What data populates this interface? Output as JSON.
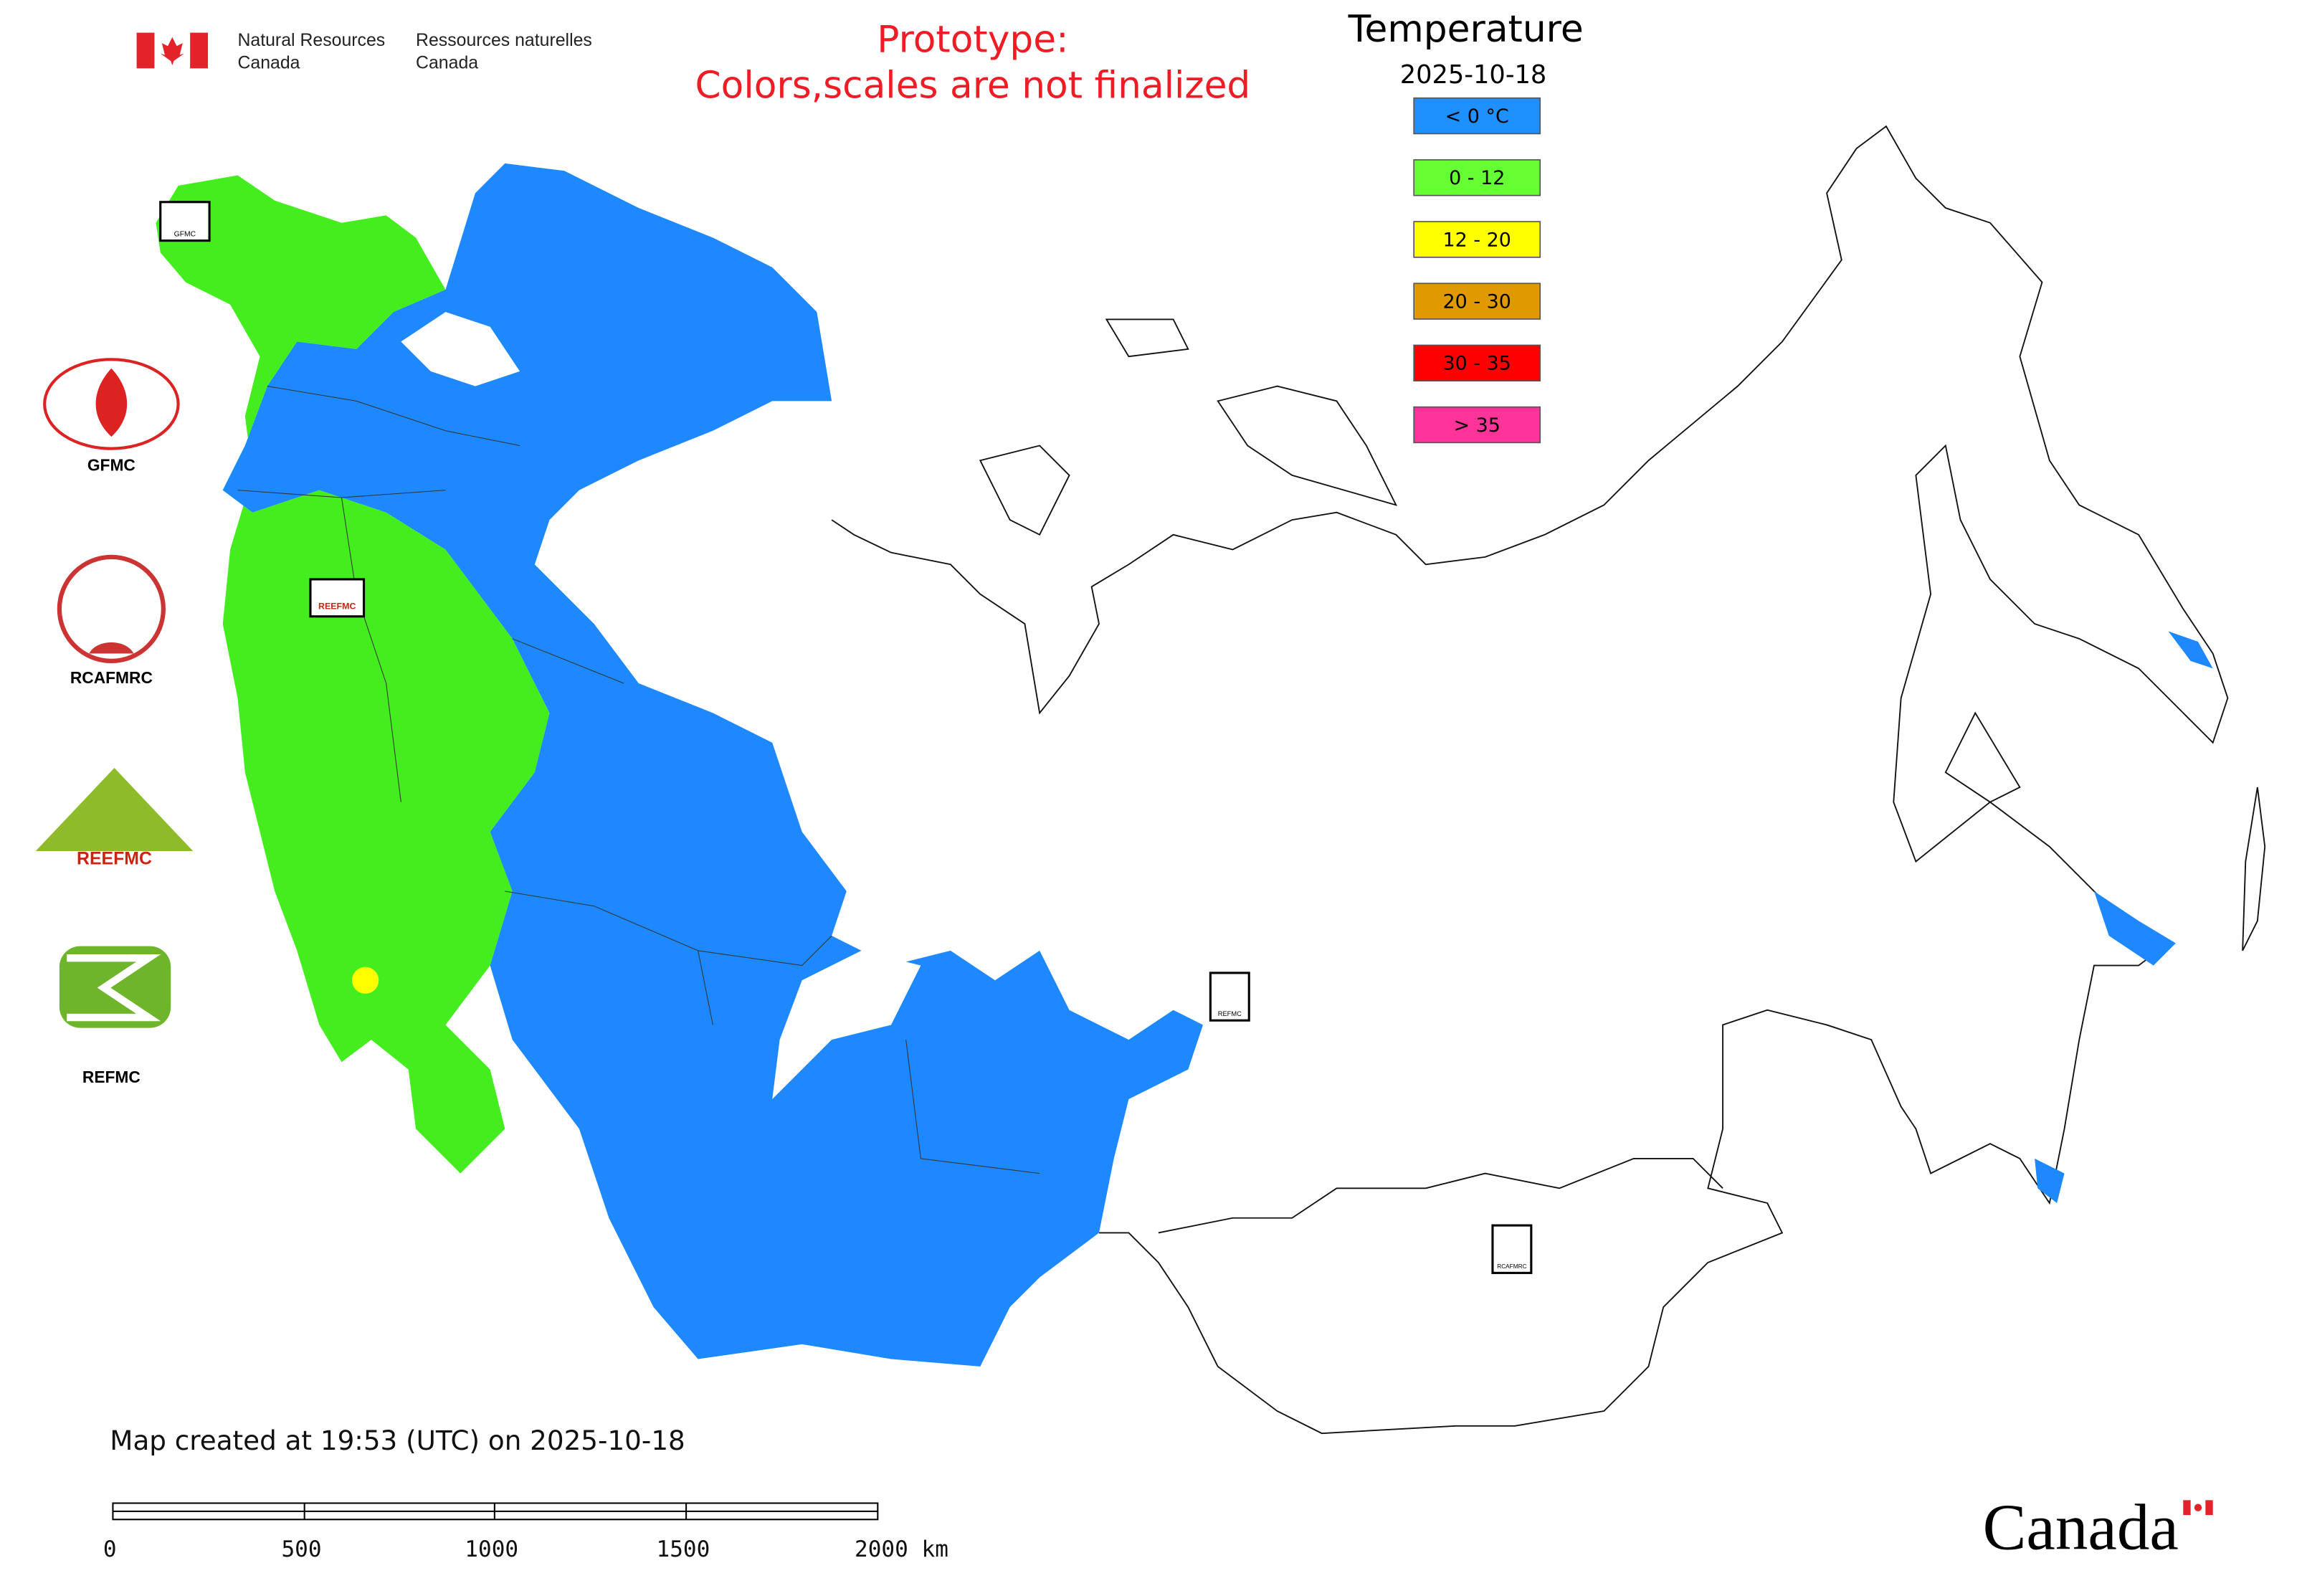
{
  "header": {
    "org_en": [
      "Natural Resources",
      "Canada"
    ],
    "org_fr": [
      "Ressources naturelles",
      "Canada"
    ],
    "notice": [
      "Prototype:",
      "Colors,scales are not finalized"
    ]
  },
  "legend": {
    "title": "Temperature",
    "date": "2025-10-18",
    "items": [
      {
        "label": "< 0 °C",
        "color": "#1e90ff"
      },
      {
        "label": "0 - 12",
        "color": "#66ff33"
      },
      {
        "label": "12 - 20",
        "color": "#ffff00"
      },
      {
        "label": "20 - 30",
        "color": "#e09a00"
      },
      {
        "label": "30 - 35",
        "color": "#ff0000"
      },
      {
        "label": "> 35",
        "color": "#ff3399"
      }
    ]
  },
  "side_logos": [
    "GFMC",
    "RCAFMRC",
    "REEFMC",
    "REFMC"
  ],
  "map_markers": [
    "GFMC",
    "REEFMC",
    "REFMC",
    "RCAFMRC"
  ],
  "footer": {
    "created": "Map created at 19:53 (UTC) on 2025-10-18",
    "scale_labels": [
      "0",
      "500",
      "1000",
      "1500",
      "2000 km"
    ],
    "wordmark": "Canada"
  }
}
